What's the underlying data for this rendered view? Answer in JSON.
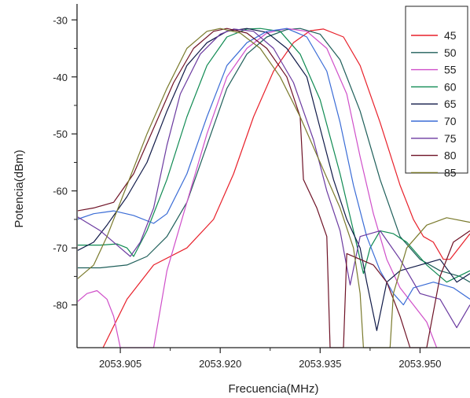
{
  "chart_data": {
    "type": "line",
    "title": "",
    "xlabel": "Frecuencia(MHz)",
    "ylabel": "Potencia(dBm)",
    "xlim": [
      2053.8985,
      2053.9575
    ],
    "ylim": [
      -87.5,
      -27.2
    ],
    "xticks": [
      2053.905,
      2053.92,
      2053.935,
      2053.95
    ],
    "xtick_labels": [
      "2053.905",
      "2053.920",
      "2053.935",
      "2053.950"
    ],
    "yticks": [
      -80,
      -70,
      -60,
      -50,
      -40,
      -30
    ],
    "ytick_labels": [
      "-80",
      "-70",
      "-60",
      "-50",
      "-40",
      "-30"
    ],
    "grid": false,
    "legend_position": "top-right",
    "series": [
      {
        "name": "45",
        "color": "#e8202a",
        "points": [
          [
            2053.9024,
            -87.5
          ],
          [
            2053.906,
            -79
          ],
          [
            2053.91,
            -73
          ],
          [
            2053.915,
            -70
          ],
          [
            2053.919,
            -65
          ],
          [
            2053.922,
            -57
          ],
          [
            2053.925,
            -47
          ],
          [
            2053.928,
            -39
          ],
          [
            2053.931,
            -34
          ],
          [
            2053.9335,
            -31.9
          ],
          [
            2053.9355,
            -31.6
          ],
          [
            2053.9385,
            -33
          ],
          [
            2053.941,
            -38
          ],
          [
            2053.944,
            -48
          ],
          [
            2053.947,
            -59
          ],
          [
            2053.949,
            -65
          ],
          [
            2053.9505,
            -68
          ],
          [
            2053.952,
            -69
          ],
          [
            2053.9535,
            -72
          ],
          [
            2053.9545,
            -72
          ],
          [
            2053.9575,
            -67.5
          ]
        ]
      },
      {
        "name": "50",
        "color": "#1f5f5a",
        "points": [
          [
            2053.8985,
            -73.5
          ],
          [
            2053.902,
            -73.5
          ],
          [
            2053.906,
            -73
          ],
          [
            2053.909,
            -71.5
          ],
          [
            2053.912,
            -68
          ],
          [
            2053.915,
            -62
          ],
          [
            2053.918,
            -52
          ],
          [
            2053.921,
            -42
          ],
          [
            2053.924,
            -36
          ],
          [
            2053.927,
            -33
          ],
          [
            2053.93,
            -31.7
          ],
          [
            2053.932,
            -31.5
          ],
          [
            2053.935,
            -32.5
          ],
          [
            2053.938,
            -37
          ],
          [
            2053.941,
            -46
          ],
          [
            2053.944,
            -58
          ],
          [
            2053.947,
            -68
          ],
          [
            2053.95,
            -72
          ],
          [
            2053.953,
            -74
          ],
          [
            2053.956,
            -75
          ],
          [
            2053.9575,
            -76
          ]
        ]
      },
      {
        "name": "55",
        "color": "#cf4fc9",
        "points": [
          [
            2053.8985,
            -79.5
          ],
          [
            2053.9,
            -78
          ],
          [
            2053.9015,
            -77.5
          ],
          [
            2053.903,
            -79
          ],
          [
            2053.904,
            -82
          ],
          [
            2053.905,
            -87.5
          ],
          [
            2053.91,
            -87.5
          ],
          [
            2053.912,
            -74
          ],
          [
            2053.915,
            -62
          ],
          [
            2053.918,
            -50
          ],
          [
            2053.921,
            -40
          ],
          [
            2053.924,
            -35
          ],
          [
            2053.927,
            -32.3
          ],
          [
            2053.93,
            -31.5
          ],
          [
            2053.933,
            -32
          ],
          [
            2053.936,
            -35
          ],
          [
            2053.939,
            -43
          ],
          [
            2053.941,
            -54
          ],
          [
            2053.943,
            -64
          ],
          [
            2053.945,
            -72
          ],
          [
            2053.947,
            -77
          ],
          [
            2053.949,
            -80
          ],
          [
            2053.951,
            -83
          ],
          [
            2053.9525,
            -87.5
          ]
        ]
      },
      {
        "name": "60",
        "color": "#0f8a52",
        "points": [
          [
            2053.8985,
            -69.5
          ],
          [
            2053.902,
            -69.5
          ],
          [
            2053.9045,
            -69.3
          ],
          [
            2053.906,
            -70
          ],
          [
            2053.907,
            -71.5
          ],
          [
            2053.909,
            -67
          ],
          [
            2053.912,
            -58
          ],
          [
            2053.915,
            -47
          ],
          [
            2053.918,
            -38
          ],
          [
            2053.921,
            -33
          ],
          [
            2053.924,
            -31.6
          ],
          [
            2053.926,
            -31.5
          ],
          [
            2053.929,
            -32
          ],
          [
            2053.932,
            -36
          ],
          [
            2053.935,
            -44
          ],
          [
            2053.938,
            -57
          ],
          [
            2053.94,
            -67
          ],
          [
            2053.9415,
            -74.5
          ],
          [
            2053.9425,
            -70
          ],
          [
            2053.944,
            -67
          ],
          [
            2053.946,
            -67.5
          ],
          [
            2053.948,
            -69
          ],
          [
            2053.951,
            -73
          ],
          [
            2053.954,
            -76
          ],
          [
            2053.9575,
            -74
          ]
        ]
      },
      {
        "name": "65",
        "color": "#101a48",
        "points": [
          [
            2053.8985,
            -70.5
          ],
          [
            2053.901,
            -69
          ],
          [
            2053.903,
            -66
          ],
          [
            2053.906,
            -61
          ],
          [
            2053.909,
            -55
          ],
          [
            2053.912,
            -46
          ],
          [
            2053.915,
            -38
          ],
          [
            2053.918,
            -34
          ],
          [
            2053.921,
            -32
          ],
          [
            2053.924,
            -31.5
          ],
          [
            2053.927,
            -32.2
          ],
          [
            2053.93,
            -35
          ],
          [
            2053.933,
            -40
          ],
          [
            2053.935,
            -49
          ],
          [
            2053.937,
            -58
          ],
          [
            2053.939,
            -65
          ],
          [
            2053.941,
            -70
          ],
          [
            2053.942,
            -76
          ],
          [
            2053.9435,
            -84.5
          ],
          [
            2053.945,
            -76
          ],
          [
            2053.947,
            -74
          ],
          [
            2053.95,
            -73
          ],
          [
            2053.953,
            -72
          ],
          [
            2053.9555,
            -76
          ],
          [
            2053.9575,
            -74.5
          ]
        ]
      },
      {
        "name": "70",
        "color": "#3a6cd6",
        "points": [
          [
            2053.8985,
            -65
          ],
          [
            2053.901,
            -64
          ],
          [
            2053.904,
            -63.5
          ],
          [
            2053.907,
            -64.3
          ],
          [
            2053.91,
            -65.7
          ],
          [
            2053.912,
            -64
          ],
          [
            2053.915,
            -57
          ],
          [
            2053.918,
            -47
          ],
          [
            2053.921,
            -38
          ],
          [
            2053.924,
            -34
          ],
          [
            2053.927,
            -32
          ],
          [
            2053.93,
            -31.5
          ],
          [
            2053.933,
            -33
          ],
          [
            2053.936,
            -39
          ],
          [
            2053.938,
            -48
          ],
          [
            2053.94,
            -59
          ],
          [
            2053.942,
            -68
          ],
          [
            2053.944,
            -74
          ],
          [
            2053.946,
            -78
          ],
          [
            2053.9475,
            -80
          ],
          [
            2053.949,
            -77
          ],
          [
            2053.952,
            -76
          ],
          [
            2053.955,
            -77
          ],
          [
            2053.9575,
            -79
          ]
        ]
      },
      {
        "name": "75",
        "color": "#6b3aa0",
        "points": [
          [
            2053.8985,
            -64.5
          ],
          [
            2053.902,
            -67
          ],
          [
            2053.905,
            -70
          ],
          [
            2053.9065,
            -71.5
          ],
          [
            2053.908,
            -69
          ],
          [
            2053.91,
            -63
          ],
          [
            2053.912,
            -52
          ],
          [
            2053.914,
            -43
          ],
          [
            2053.917,
            -36
          ],
          [
            2053.92,
            -32.5
          ],
          [
            2053.922,
            -31.6
          ],
          [
            2053.925,
            -32
          ],
          [
            2053.928,
            -35
          ],
          [
            2053.931,
            -41
          ],
          [
            2053.934,
            -51
          ],
          [
            2053.936,
            -60
          ],
          [
            2053.938,
            -67
          ],
          [
            2053.9395,
            -76.5
          ],
          [
            2053.941,
            -68
          ],
          [
            2053.944,
            -67
          ],
          [
            2053.947,
            -72
          ],
          [
            2053.95,
            -78
          ],
          [
            2053.953,
            -79
          ],
          [
            2053.9555,
            -84
          ],
          [
            2053.9575,
            -80
          ]
        ]
      },
      {
        "name": "80",
        "color": "#6e1226",
        "points": [
          [
            2053.8985,
            -63.5
          ],
          [
            2053.901,
            -63
          ],
          [
            2053.904,
            -62
          ],
          [
            2053.907,
            -57
          ],
          [
            2053.91,
            -49
          ],
          [
            2053.913,
            -41
          ],
          [
            2053.916,
            -35
          ],
          [
            2053.919,
            -32
          ],
          [
            2053.921,
            -31.5
          ],
          [
            2053.924,
            -32.3
          ],
          [
            2053.927,
            -35
          ],
          [
            2053.93,
            -40
          ],
          [
            2053.932,
            -47
          ],
          [
            2053.9325,
            -58
          ],
          [
            2053.9345,
            -63
          ],
          [
            2053.936,
            -68
          ],
          [
            2053.9365,
            -87.5
          ],
          [
            2053.9385,
            -87.5
          ],
          [
            2053.939,
            -71
          ],
          [
            2053.941,
            -72
          ],
          [
            2053.943,
            -73
          ],
          [
            2053.945,
            -76
          ],
          [
            2053.947,
            -82
          ],
          [
            2053.9485,
            -87.5
          ],
          [
            2053.951,
            -87.5
          ],
          [
            2053.953,
            -75
          ],
          [
            2053.955,
            -69
          ],
          [
            2053.9575,
            -67
          ]
        ]
      },
      {
        "name": "85",
        "color": "#7a7a2c",
        "points": [
          [
            2053.8985,
            -75.5
          ],
          [
            2053.901,
            -73
          ],
          [
            2053.903,
            -68
          ],
          [
            2053.906,
            -59
          ],
          [
            2053.909,
            -50
          ],
          [
            2053.912,
            -42
          ],
          [
            2053.915,
            -35
          ],
          [
            2053.918,
            -32
          ],
          [
            2053.92,
            -31.5
          ],
          [
            2053.923,
            -32.3
          ],
          [
            2053.926,
            -35
          ],
          [
            2053.929,
            -40
          ],
          [
            2053.932,
            -47
          ],
          [
            2053.935,
            -55
          ],
          [
            2053.938,
            -63
          ],
          [
            2053.94,
            -70
          ],
          [
            2053.941,
            -78
          ],
          [
            2053.9415,
            -87.5
          ],
          [
            2053.9455,
            -87.5
          ],
          [
            2053.946,
            -78
          ],
          [
            2053.948,
            -70
          ],
          [
            2053.951,
            -66
          ],
          [
            2053.954,
            -64.7
          ],
          [
            2053.9575,
            -65.5
          ]
        ]
      }
    ]
  }
}
